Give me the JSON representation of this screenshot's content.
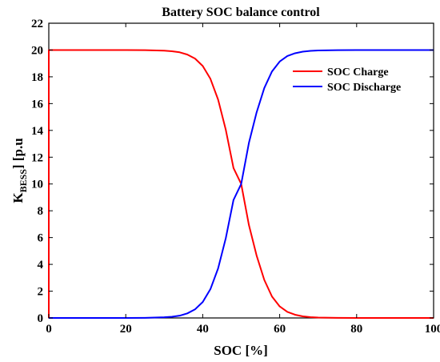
{
  "chart_data": {
    "type": "line",
    "title": "Battery SOC balance control",
    "xlabel": "SOC [%]",
    "ylabel_main": "K",
    "ylabel_sub": "BESS",
    "ylabel_rest": "] [p.u",
    "xlim": [
      0,
      100
    ],
    "ylim": [
      0,
      22
    ],
    "xticks": [
      0,
      20,
      40,
      60,
      80,
      100
    ],
    "yticks": [
      0,
      2,
      4,
      6,
      8,
      10,
      12,
      14,
      16,
      18,
      20,
      22
    ],
    "grid": false,
    "legend_position": "top-right",
    "series": [
      {
        "name": "SOC Charge",
        "color": "#ff0000",
        "x": [
          0,
          0,
          5,
          10,
          15,
          20,
          25,
          30,
          32,
          34,
          36,
          38,
          40,
          42,
          44,
          46,
          48,
          50,
          52,
          54,
          56,
          58,
          60,
          62,
          64,
          66,
          68,
          70,
          75,
          80,
          85,
          90,
          95,
          100
        ],
        "y": [
          0,
          20,
          20,
          20,
          20,
          19.999,
          19.99,
          19.95,
          19.91,
          19.83,
          19.66,
          19.36,
          18.81,
          17.85,
          16.3,
          14.04,
          11.19,
          10,
          6.94,
          4.66,
          2.84,
          1.6,
          0.86,
          0.45,
          0.24,
          0.12,
          0.06,
          0.03,
          0.01,
          0,
          0,
          0,
          0,
          0
        ]
      },
      {
        "name": "SOC Discharge",
        "color": "#0000ff",
        "x": [
          0,
          5,
          10,
          15,
          20,
          25,
          30,
          32,
          34,
          36,
          38,
          40,
          42,
          44,
          46,
          48,
          50,
          52,
          54,
          56,
          58,
          60,
          62,
          64,
          66,
          68,
          70,
          75,
          80,
          85,
          90,
          95,
          100
        ],
        "y": [
          0,
          0,
          0,
          0,
          0.001,
          0.01,
          0.05,
          0.09,
          0.17,
          0.34,
          0.64,
          1.19,
          2.15,
          3.7,
          5.96,
          8.81,
          10,
          13.06,
          15.34,
          17.16,
          18.4,
          19.14,
          19.55,
          19.76,
          19.88,
          19.94,
          19.97,
          19.99,
          20,
          20,
          20,
          20,
          20
        ]
      }
    ]
  }
}
